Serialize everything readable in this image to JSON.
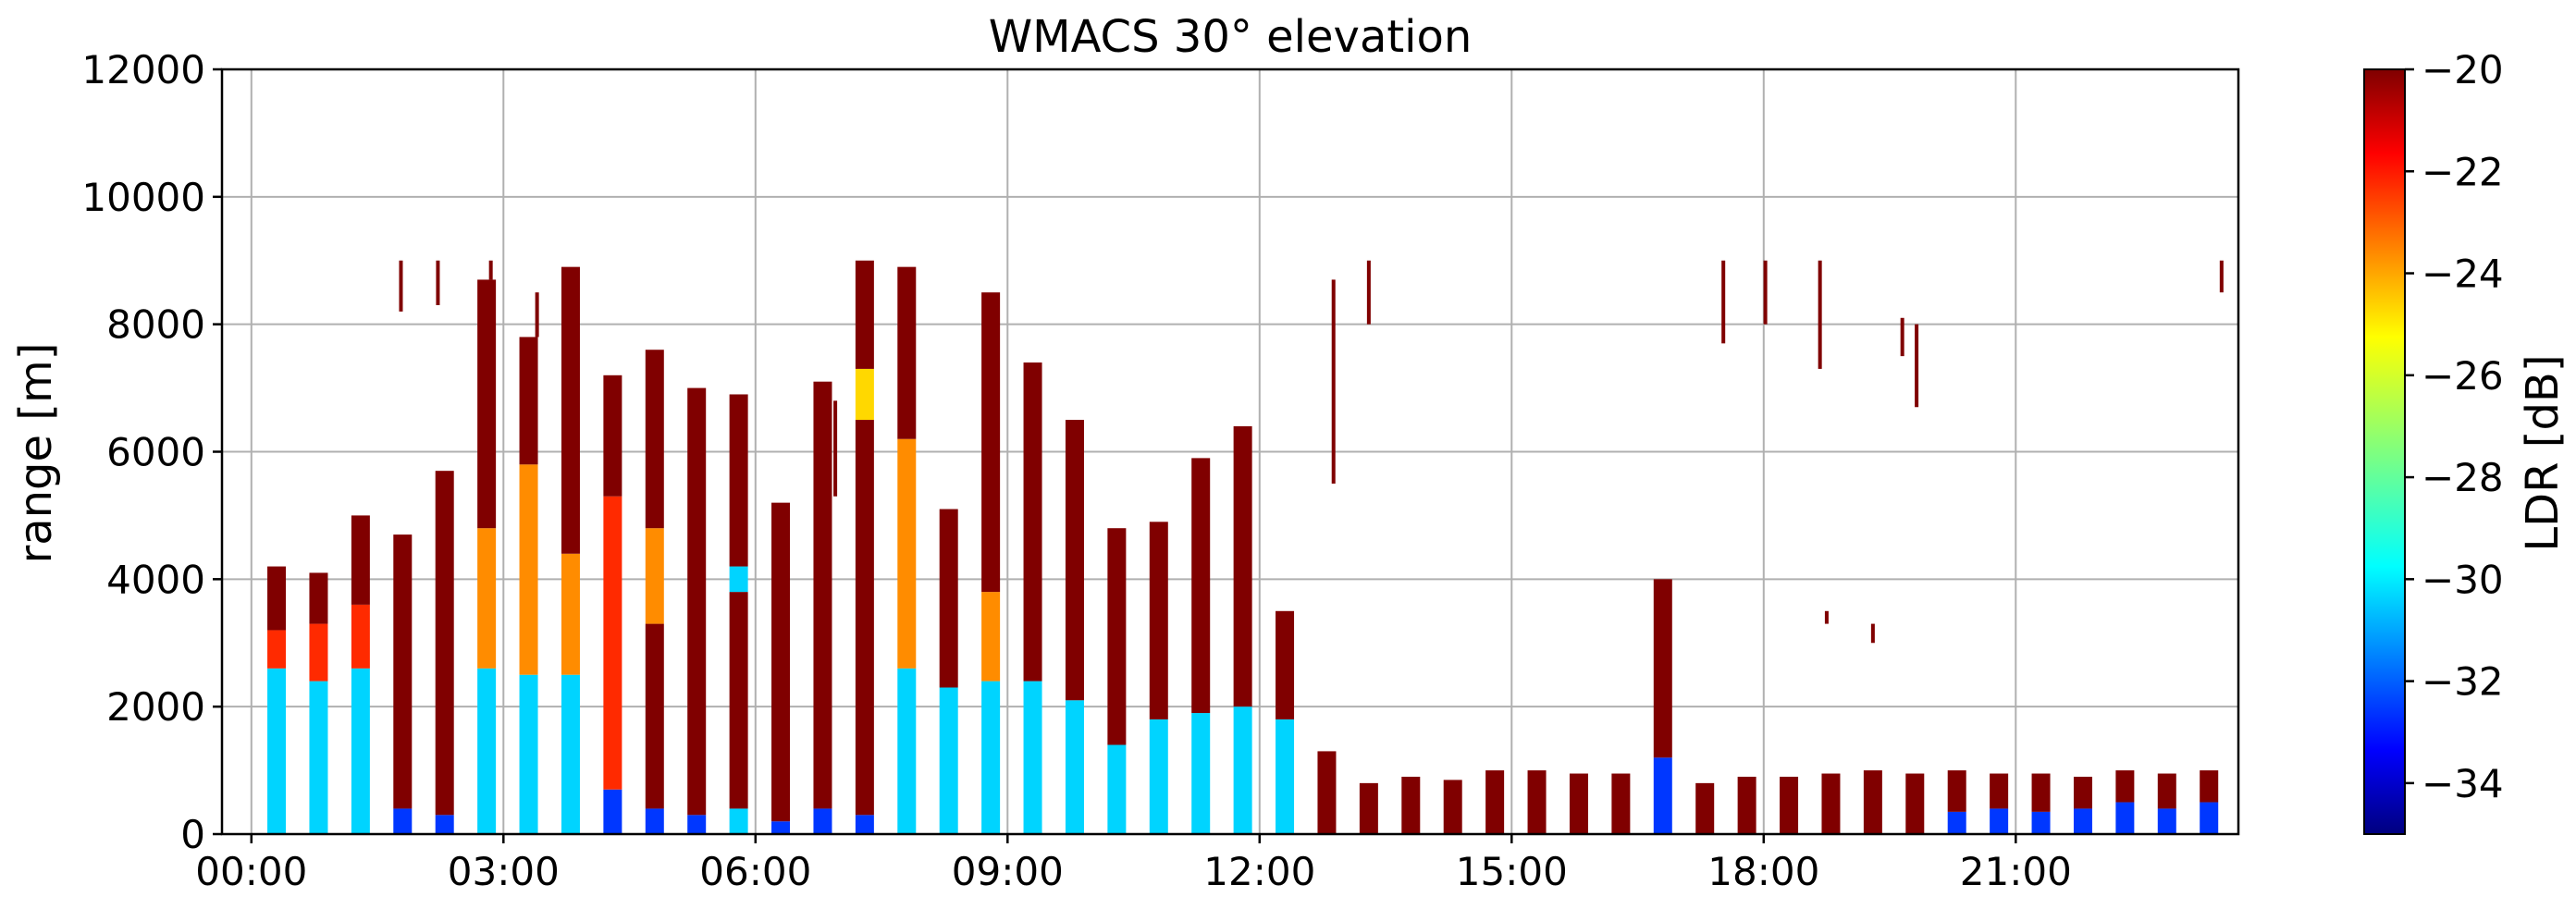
{
  "chart_data": {
    "type": "heatmap",
    "title": "WMACS 30° elevation",
    "xlabel": "",
    "ylabel": "range [m]",
    "xlim_hours": [
      -0.35,
      23.65
    ],
    "ylim": [
      0,
      12000
    ],
    "x_ticks": [
      "00:00",
      "03:00",
      "06:00",
      "09:00",
      "12:00",
      "15:00",
      "18:00",
      "21:00"
    ],
    "x_tick_hours": [
      0,
      3,
      6,
      9,
      12,
      15,
      18,
      21
    ],
    "y_ticks": [
      0,
      2000,
      4000,
      6000,
      8000,
      10000,
      12000
    ],
    "grid": true,
    "colorbar": {
      "label": "LDR [dB]",
      "range": [
        -35,
        -20
      ],
      "ticks": [
        -20,
        -22,
        -24,
        -26,
        -28,
        -30,
        -32,
        -34
      ],
      "tick_labels": [
        "−20",
        "−22",
        "−24",
        "−26",
        "−28",
        "−30",
        "−32",
        "−34"
      ],
      "colormap": "jet"
    },
    "colors": {
      "saturated": "#800000",
      "orange": "#ff8c00",
      "red": "#ff2a00",
      "yellow": "#ffd800",
      "blue": "#0037ff",
      "cyan": "#00d4ff",
      "lightblue": "#3f9fff"
    },
    "profiles": [
      {
        "t": 0.3,
        "top": 4200,
        "bands": [
          [
            0,
            2600,
            "cyan"
          ],
          [
            2600,
            3200,
            "red"
          ],
          [
            3200,
            4200,
            "saturated"
          ]
        ]
      },
      {
        "t": 0.8,
        "top": 4100,
        "bands": [
          [
            0,
            2400,
            "cyan"
          ],
          [
            2400,
            3300,
            "red"
          ],
          [
            3300,
            4100,
            "saturated"
          ]
        ]
      },
      {
        "t": 1.3,
        "top": 5000,
        "bands": [
          [
            0,
            2600,
            "cyan"
          ],
          [
            2600,
            3600,
            "red"
          ],
          [
            3600,
            5000,
            "saturated"
          ]
        ]
      },
      {
        "t": 1.8,
        "top": 4700,
        "bands": [
          [
            0,
            400,
            "blue"
          ],
          [
            400,
            4700,
            "saturated"
          ]
        ]
      },
      {
        "t": 2.3,
        "top": 5700,
        "bands": [
          [
            0,
            300,
            "blue"
          ],
          [
            300,
            5700,
            "saturated"
          ]
        ]
      },
      {
        "t": 2.8,
        "top": 8700,
        "bands": [
          [
            0,
            2600,
            "cyan"
          ],
          [
            2600,
            4800,
            "orange"
          ],
          [
            4800,
            8700,
            "saturated"
          ]
        ]
      },
      {
        "t": 3.3,
        "top": 7800,
        "bands": [
          [
            0,
            2500,
            "cyan"
          ],
          [
            2500,
            5800,
            "orange"
          ],
          [
            5800,
            7800,
            "saturated"
          ]
        ]
      },
      {
        "t": 3.8,
        "top": 8900,
        "bands": [
          [
            0,
            2500,
            "cyan"
          ],
          [
            2500,
            4400,
            "orange"
          ],
          [
            4400,
            8900,
            "saturated"
          ]
        ]
      },
      {
        "t": 4.3,
        "top": 7200,
        "bands": [
          [
            0,
            700,
            "blue"
          ],
          [
            700,
            5300,
            "red"
          ],
          [
            5300,
            7200,
            "saturated"
          ]
        ]
      },
      {
        "t": 4.8,
        "top": 7600,
        "bands": [
          [
            0,
            400,
            "blue"
          ],
          [
            400,
            3300,
            "saturated"
          ],
          [
            3300,
            4800,
            "orange"
          ],
          [
            4800,
            7600,
            "saturated"
          ]
        ]
      },
      {
        "t": 5.3,
        "top": 7000,
        "bands": [
          [
            0,
            300,
            "blue"
          ],
          [
            300,
            7000,
            "saturated"
          ]
        ]
      },
      {
        "t": 5.8,
        "top": 6900,
        "bands": [
          [
            0,
            400,
            "cyan"
          ],
          [
            400,
            3800,
            "saturated"
          ],
          [
            3800,
            4200,
            "cyan"
          ],
          [
            4200,
            6900,
            "saturated"
          ]
        ]
      },
      {
        "t": 6.3,
        "top": 5200,
        "bands": [
          [
            0,
            200,
            "blue"
          ],
          [
            200,
            5200,
            "saturated"
          ]
        ]
      },
      {
        "t": 6.8,
        "top": 7100,
        "bands": [
          [
            0,
            400,
            "blue"
          ],
          [
            400,
            7100,
            "saturated"
          ]
        ]
      },
      {
        "t": 7.3,
        "top": 9000,
        "bands": [
          [
            0,
            300,
            "blue"
          ],
          [
            300,
            6500,
            "saturated"
          ],
          [
            6500,
            7300,
            "yellow"
          ],
          [
            7300,
            9000,
            "saturated"
          ]
        ]
      },
      {
        "t": 7.8,
        "top": 8900,
        "bands": [
          [
            0,
            2600,
            "cyan"
          ],
          [
            2600,
            6200,
            "orange"
          ],
          [
            6200,
            8900,
            "saturated"
          ]
        ]
      },
      {
        "t": 8.3,
        "top": 5100,
        "bands": [
          [
            0,
            2300,
            "cyan"
          ],
          [
            2300,
            5100,
            "saturated"
          ]
        ]
      },
      {
        "t": 8.8,
        "top": 8500,
        "bands": [
          [
            0,
            2400,
            "cyan"
          ],
          [
            2400,
            3800,
            "orange"
          ],
          [
            3800,
            8500,
            "saturated"
          ]
        ]
      },
      {
        "t": 9.3,
        "top": 7400,
        "bands": [
          [
            0,
            2400,
            "cyan"
          ],
          [
            2400,
            7400,
            "saturated"
          ]
        ]
      },
      {
        "t": 9.8,
        "top": 6500,
        "bands": [
          [
            0,
            2100,
            "cyan"
          ],
          [
            2100,
            6500,
            "saturated"
          ]
        ]
      },
      {
        "t": 10.3,
        "top": 4800,
        "bands": [
          [
            0,
            1400,
            "cyan"
          ],
          [
            1400,
            4800,
            "saturated"
          ]
        ]
      },
      {
        "t": 10.8,
        "top": 4900,
        "bands": [
          [
            0,
            1800,
            "cyan"
          ],
          [
            1800,
            4900,
            "saturated"
          ]
        ]
      },
      {
        "t": 11.3,
        "top": 5900,
        "bands": [
          [
            0,
            1900,
            "cyan"
          ],
          [
            1900,
            5900,
            "saturated"
          ]
        ]
      },
      {
        "t": 11.8,
        "top": 6400,
        "bands": [
          [
            0,
            2000,
            "cyan"
          ],
          [
            2000,
            6400,
            "saturated"
          ]
        ]
      },
      {
        "t": 12.3,
        "top": 3500,
        "bands": [
          [
            0,
            1800,
            "cyan"
          ],
          [
            1800,
            3500,
            "saturated"
          ]
        ]
      },
      {
        "t": 12.8,
        "top": 1300,
        "bands": [
          [
            0,
            1300,
            "saturated"
          ]
        ]
      },
      {
        "t": 13.3,
        "top": 800,
        "bands": [
          [
            0,
            800,
            "saturated"
          ]
        ]
      },
      {
        "t": 13.8,
        "top": 900,
        "bands": [
          [
            0,
            900,
            "saturated"
          ]
        ]
      },
      {
        "t": 14.3,
        "top": 850,
        "bands": [
          [
            0,
            850,
            "saturated"
          ]
        ]
      },
      {
        "t": 14.8,
        "top": 1000,
        "bands": [
          [
            0,
            1000,
            "saturated"
          ]
        ]
      },
      {
        "t": 15.3,
        "top": 1000,
        "bands": [
          [
            0,
            1000,
            "saturated"
          ]
        ]
      },
      {
        "t": 15.8,
        "top": 950,
        "bands": [
          [
            0,
            950,
            "saturated"
          ]
        ]
      },
      {
        "t": 16.3,
        "top": 950,
        "bands": [
          [
            0,
            950,
            "saturated"
          ]
        ]
      },
      {
        "t": 16.8,
        "top": 4000,
        "bands": [
          [
            0,
            1200,
            "blue"
          ],
          [
            1200,
            4000,
            "saturated"
          ]
        ]
      },
      {
        "t": 17.3,
        "top": 800,
        "bands": [
          [
            0,
            800,
            "saturated"
          ]
        ]
      },
      {
        "t": 17.8,
        "top": 900,
        "bands": [
          [
            0,
            900,
            "saturated"
          ]
        ]
      },
      {
        "t": 18.3,
        "top": 900,
        "bands": [
          [
            0,
            900,
            "saturated"
          ]
        ]
      },
      {
        "t": 18.8,
        "top": 950,
        "bands": [
          [
            0,
            950,
            "saturated"
          ]
        ]
      },
      {
        "t": 19.3,
        "top": 1000,
        "bands": [
          [
            0,
            1000,
            "saturated"
          ]
        ]
      },
      {
        "t": 19.8,
        "top": 950,
        "bands": [
          [
            0,
            950,
            "saturated"
          ]
        ]
      },
      {
        "t": 20.3,
        "top": 1000,
        "bands": [
          [
            0,
            350,
            "blue"
          ],
          [
            350,
            1000,
            "saturated"
          ]
        ]
      },
      {
        "t": 20.8,
        "top": 950,
        "bands": [
          [
            0,
            400,
            "blue"
          ],
          [
            400,
            950,
            "saturated"
          ]
        ]
      },
      {
        "t": 21.3,
        "top": 950,
        "bands": [
          [
            0,
            350,
            "blue"
          ],
          [
            350,
            950,
            "saturated"
          ]
        ]
      },
      {
        "t": 21.8,
        "top": 900,
        "bands": [
          [
            0,
            400,
            "blue"
          ],
          [
            400,
            900,
            "saturated"
          ]
        ]
      },
      {
        "t": 22.3,
        "top": 1000,
        "bands": [
          [
            0,
            500,
            "blue"
          ],
          [
            500,
            1000,
            "saturated"
          ]
        ]
      },
      {
        "t": 22.8,
        "top": 950,
        "bands": [
          [
            0,
            400,
            "blue"
          ],
          [
            400,
            950,
            "saturated"
          ]
        ]
      },
      {
        "t": 23.3,
        "top": 1000,
        "bands": [
          [
            0,
            500,
            "blue"
          ],
          [
            500,
            1000,
            "saturated"
          ]
        ]
      }
    ],
    "fragments": [
      {
        "t": 1.78,
        "y0": 8200,
        "y1": 9000
      },
      {
        "t": 2.22,
        "y0": 8300,
        "y1": 9000
      },
      {
        "t": 2.85,
        "y0": 8700,
        "y1": 9000
      },
      {
        "t": 3.4,
        "y0": 7800,
        "y1": 8500
      },
      {
        "t": 6.95,
        "y0": 5300,
        "y1": 6800
      },
      {
        "t": 12.88,
        "y0": 5500,
        "y1": 8700
      },
      {
        "t": 13.3,
        "y0": 8000,
        "y1": 9000
      },
      {
        "t": 17.52,
        "y0": 7700,
        "y1": 9000
      },
      {
        "t": 18.02,
        "y0": 8000,
        "y1": 9000
      },
      {
        "t": 18.67,
        "y0": 7300,
        "y1": 9000
      },
      {
        "t": 19.82,
        "y0": 6700,
        "y1": 8000
      },
      {
        "t": 19.65,
        "y0": 7500,
        "y1": 8100
      },
      {
        "t": 23.45,
        "y0": 8500,
        "y1": 9000
      },
      {
        "t": 18.75,
        "y0": 3300,
        "y1": 3500
      },
      {
        "t": 19.3,
        "y0": 3000,
        "y1": 3300
      }
    ]
  }
}
